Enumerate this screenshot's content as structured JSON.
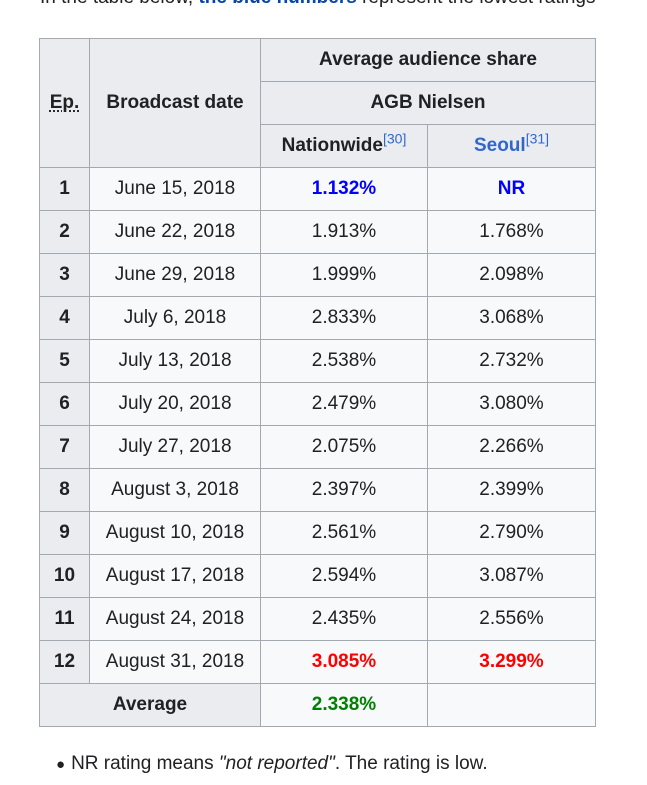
{
  "intro": {
    "prefix": "In the table below, ",
    "highlight": "the blue numbers",
    "suffix": " represent the lowest ratings"
  },
  "table": {
    "header": {
      "ep": "Ep.",
      "broadcast_date": "Broadcast date",
      "average_share": "Average audience share",
      "agb": "AGB Nielsen",
      "nationwide": "Nationwide",
      "nationwide_ref": "[30]",
      "seoul": "Seoul",
      "seoul_ref": "[31]"
    },
    "rows": [
      {
        "ep": "1",
        "date": "June 15, 2018",
        "nationwide": "1.132%",
        "seoul": "NR"
      },
      {
        "ep": "2",
        "date": "June 22, 2018",
        "nationwide": "1.913%",
        "seoul": "1.768%"
      },
      {
        "ep": "3",
        "date": "June 29, 2018",
        "nationwide": "1.999%",
        "seoul": "2.098%"
      },
      {
        "ep": "4",
        "date": "July 6, 2018",
        "nationwide": "2.833%",
        "seoul": "3.068%"
      },
      {
        "ep": "5",
        "date": "July 13, 2018",
        "nationwide": "2.538%",
        "seoul": "2.732%"
      },
      {
        "ep": "6",
        "date": "July 20, 2018",
        "nationwide": "2.479%",
        "seoul": "3.080%"
      },
      {
        "ep": "7",
        "date": "July 27, 2018",
        "nationwide": "2.075%",
        "seoul": "2.266%"
      },
      {
        "ep": "8",
        "date": "August 3, 2018",
        "nationwide": "2.397%",
        "seoul": "2.399%"
      },
      {
        "ep": "9",
        "date": "August 10, 2018",
        "nationwide": "2.561%",
        "seoul": "2.790%"
      },
      {
        "ep": "10",
        "date": "August 17, 2018",
        "nationwide": "2.594%",
        "seoul": "3.087%"
      },
      {
        "ep": "11",
        "date": "August 24, 2018",
        "nationwide": "2.435%",
        "seoul": "2.556%"
      },
      {
        "ep": "12",
        "date": "August 31, 2018",
        "nationwide": "3.085%",
        "seoul": "3.299%"
      }
    ],
    "average": {
      "label": "Average",
      "nationwide": "2.338%",
      "seoul": ""
    }
  },
  "note": {
    "prefix": "NR rating means ",
    "quoted": "\"not reported\"",
    "suffix": ". The rating is low."
  },
  "colors": {
    "lowest": "#0000ff",
    "highest": "#ff0000",
    "average": "#008000",
    "link": "#3366cc",
    "header_bg": "#eaecf0",
    "cell_bg": "#f8f9fa",
    "border": "#a2a9b1"
  }
}
